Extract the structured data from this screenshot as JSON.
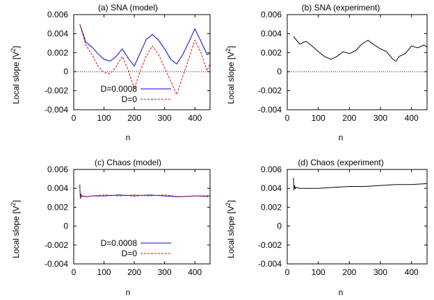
{
  "chart_data": [
    {
      "type": "line",
      "title": "(a) SNA (model)",
      "xlabel": "n",
      "ylabel": "Local slope [V",
      "ylabel_sup": "2",
      "ylabel_end": "]",
      "xlim": [
        0,
        450
      ],
      "ylim": [
        -0.004,
        0.006
      ],
      "xticks": [
        0,
        100,
        200,
        300,
        400
      ],
      "yticks": [
        -0.004,
        -0.002,
        0,
        0.002,
        0.004,
        0.006
      ],
      "ytick_labels": [
        "-0.004",
        "-0.002",
        "0",
        "0.002",
        "0.004",
        "0.006"
      ],
      "zero_line": true,
      "legend": "bottom-left",
      "series": [
        {
          "name": "D=0.0008",
          "color": "#0000dd",
          "dash": "solid",
          "x": [
            20,
            40,
            60,
            80,
            100,
            120,
            140,
            160,
            180,
            200,
            220,
            240,
            260,
            280,
            300,
            320,
            340,
            360,
            380,
            400,
            420,
            440,
            450
          ],
          "y": [
            0.005,
            0.0031,
            0.0026,
            0.0019,
            0.0013,
            0.0011,
            0.0016,
            0.0024,
            0.0014,
            0.0006,
            0.002,
            0.0034,
            0.0039,
            0.0033,
            0.0024,
            0.0013,
            0.0008,
            0.0018,
            0.0031,
            0.0045,
            0.0032,
            0.0018,
            0.0019
          ]
        },
        {
          "name": "D=0",
          "color": "#dd0000",
          "dash": "dashed",
          "x": [
            20,
            40,
            60,
            80,
            100,
            120,
            140,
            160,
            180,
            200,
            220,
            240,
            260,
            280,
            300,
            320,
            340,
            360,
            380,
            400,
            420,
            440,
            450
          ],
          "y": [
            0.005,
            0.0028,
            0.0018,
            0.0006,
            -0.0001,
            -0.0002,
            0.0005,
            0.0016,
            0.0002,
            -0.0018,
            0.0001,
            0.0017,
            0.0027,
            0.0018,
            0.0004,
            -0.001,
            -0.0024,
            -0.0005,
            0.0014,
            0.0033,
            0.002,
            0.0001,
            0.0008
          ]
        }
      ]
    },
    {
      "type": "line",
      "title": "(b) SNA (experiment)",
      "xlabel": "n",
      "ylabel": "Local slope [V",
      "ylabel_sup": "2",
      "ylabel_end": "]",
      "xlim": [
        0,
        450
      ],
      "ylim": [
        -0.004,
        0.006
      ],
      "xticks": [
        0,
        100,
        200,
        300,
        400
      ],
      "yticks": [
        -0.004,
        -0.002,
        0,
        0.002,
        0.004,
        0.006
      ],
      "ytick_labels": [
        "-0.004",
        "-0.002",
        "0",
        "0.002",
        "0.004",
        "0.006"
      ],
      "zero_line": true,
      "legend": "none",
      "series": [
        {
          "color": "#000000",
          "dash": "solid",
          "x": [
            20,
            40,
            60,
            80,
            100,
            120,
            140,
            160,
            180,
            200,
            220,
            240,
            260,
            280,
            300,
            320,
            340,
            350,
            360,
            380,
            400,
            420,
            440,
            450
          ],
          "y": [
            0.0037,
            0.0029,
            0.0032,
            0.0027,
            0.0021,
            0.0016,
            0.0013,
            0.0016,
            0.0021,
            0.0019,
            0.0022,
            0.0029,
            0.0033,
            0.0028,
            0.0024,
            0.0021,
            0.0013,
            0.0011,
            0.0016,
            0.0019,
            0.0027,
            0.0025,
            0.0028,
            0.0026
          ]
        }
      ]
    },
    {
      "type": "line",
      "title": "(c) Chaos (model)",
      "xlabel": "n",
      "ylabel": "Local slope [V",
      "ylabel_sup": "2",
      "ylabel_end": "]",
      "xlim": [
        0,
        450
      ],
      "ylim": [
        -0.004,
        0.006
      ],
      "xticks": [
        0,
        100,
        200,
        300,
        400
      ],
      "yticks": [
        -0.004,
        -0.002,
        0,
        0.002,
        0.004,
        0.006
      ],
      "ytick_labels": [
        "-0.004",
        "-0.002",
        "0",
        "0.002",
        "0.004",
        "0.006"
      ],
      "zero_line": false,
      "legend": "bottom-left",
      "series": [
        {
          "name": "D=0.0008",
          "color": "#0000dd",
          "dash": "solid",
          "x": [
            20,
            22,
            24,
            26,
            30,
            40,
            60,
            100,
            150,
            200,
            250,
            300,
            350,
            400,
            450
          ],
          "y": [
            0.0044,
            0.0029,
            0.0034,
            0.0031,
            0.0032,
            0.0031,
            0.0032,
            0.0032,
            0.0033,
            0.0032,
            0.0033,
            0.0032,
            0.0031,
            0.0032,
            0.0032
          ]
        },
        {
          "name": "D=0",
          "color": "#dd0000",
          "dash": "dashed",
          "x": [
            20,
            22,
            24,
            26,
            30,
            40,
            60,
            100,
            150,
            200,
            250,
            300,
            350,
            400,
            450
          ],
          "y": [
            0.0043,
            0.003,
            0.0033,
            0.0031,
            0.0032,
            0.0031,
            0.0032,
            0.0033,
            0.0032,
            0.0033,
            0.0032,
            0.0033,
            0.0031,
            0.0032,
            0.0031
          ]
        }
      ]
    },
    {
      "type": "line",
      "title": "(d) Chaos (experiment)",
      "xlabel": "n",
      "ylabel": "Local slope [V",
      "ylabel_sup": "2",
      "ylabel_end": "]",
      "xlim": [
        0,
        450
      ],
      "ylim": [
        -0.004,
        0.006
      ],
      "xticks": [
        0,
        100,
        200,
        300,
        400
      ],
      "yticks": [
        -0.004,
        -0.002,
        0,
        0.002,
        0.004,
        0.006
      ],
      "ytick_labels": [
        "-0.004",
        "-0.002",
        "0",
        "0.002",
        "0.004",
        "0.006"
      ],
      "zero_line": false,
      "legend": "none",
      "series": [
        {
          "color": "#000000",
          "dash": "solid",
          "x": [
            20,
            22,
            24,
            26,
            30,
            40,
            60,
            100,
            150,
            200,
            250,
            300,
            350,
            400,
            450
          ],
          "y": [
            0.0051,
            0.0038,
            0.0043,
            0.004,
            0.0041,
            0.004,
            0.004,
            0.004,
            0.0041,
            0.0042,
            0.0042,
            0.0043,
            0.0044,
            0.0044,
            0.0045
          ]
        }
      ]
    }
  ]
}
